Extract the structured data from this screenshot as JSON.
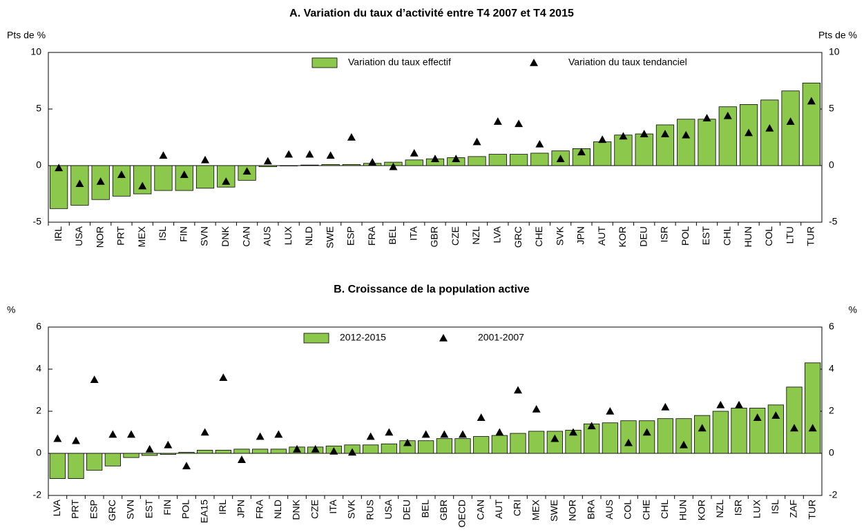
{
  "chart_data": [
    {
      "type": "bar",
      "title": "A. Variation du taux d’activité entre T4 2007 et T4 2015",
      "y_label_left": "Pts de %",
      "y_label_right": "Pts de %",
      "categories": [
        "IRL",
        "USA",
        "NOR",
        "PRT",
        "MEX",
        "ISL",
        "FIN",
        "SVN",
        "DNK",
        "CAN",
        "AUS",
        "LUX",
        "NLD",
        "SWE",
        "ESP",
        "FRA",
        "BEL",
        "ITA",
        "GBR",
        "CZE",
        "NZL",
        "LVA",
        "GRC",
        "CHE",
        "SVK",
        "JPN",
        "AUT",
        "KOR",
        "DEU",
        "ISR",
        "POL",
        "EST",
        "CHL",
        "HUN",
        "COL",
        "LTU",
        "TUR"
      ],
      "series": [
        {
          "name": "Variation du taux effectif",
          "color": "#8cc84b",
          "marker": "bar",
          "values": [
            -3.8,
            -3.5,
            -3.0,
            -2.7,
            -2.5,
            -2.2,
            -2.2,
            -2.0,
            -1.9,
            -1.3,
            -0.1,
            0.0,
            0.05,
            0.1,
            0.1,
            0.2,
            0.3,
            0.5,
            0.6,
            0.7,
            0.8,
            1.0,
            1.0,
            1.1,
            1.3,
            1.5,
            2.1,
            2.7,
            2.8,
            3.6,
            4.1,
            4.1,
            5.2,
            5.4,
            5.8,
            6.6,
            7.3
          ]
        },
        {
          "name": "Variation du taux tendanciel",
          "color": "#000000",
          "marker": "triangle",
          "values": [
            -0.2,
            -1.6,
            -1.4,
            -0.8,
            -1.8,
            0.9,
            -0.8,
            0.5,
            -1.4,
            -0.5,
            0.4,
            1.0,
            1.0,
            0.9,
            2.5,
            0.3,
            -0.1,
            1.1,
            0.6,
            0.6,
            2.1,
            3.9,
            3.7,
            1.9,
            0.6,
            1.2,
            2.3,
            2.6,
            2.8,
            2.8,
            2.7,
            4.2,
            4.4,
            2.9,
            3.3,
            3.9,
            5.7
          ]
        }
      ],
      "ylim": [
        -5,
        10
      ],
      "yticks": [
        -5,
        0,
        5,
        10
      ],
      "grid": false
    },
    {
      "type": "bar",
      "title": "B. Croissance de la population active",
      "y_label_left": "%",
      "y_label_right": "%",
      "categories": [
        "LVA",
        "PRT",
        "ESP",
        "GRC",
        "SVN",
        "EST",
        "FIN",
        "POL",
        "EA15",
        "IRL",
        "JPN",
        "FRA",
        "NLD",
        "DNK",
        "CZE",
        "ITA",
        "SVK",
        "RUS",
        "USA",
        "DEU",
        "BEL",
        "GBR",
        "OECD",
        "CAN",
        "AUT",
        "CRI",
        "MEX",
        "SWE",
        "NOR",
        "BRA",
        "AUS",
        "COL",
        "CHE",
        "CHL",
        "HUN",
        "KOR",
        "NZL",
        "ISR",
        "LUX",
        "ISL",
        "ZAF",
        "TUR"
      ],
      "series": [
        {
          "name": "2012-2015",
          "color": "#8cc84b",
          "marker": "bar",
          "values": [
            -1.2,
            -1.2,
            -0.8,
            -0.6,
            -0.2,
            -0.1,
            -0.05,
            0.05,
            0.15,
            0.15,
            0.2,
            0.2,
            0.2,
            0.3,
            0.3,
            0.35,
            0.4,
            0.4,
            0.45,
            0.6,
            0.6,
            0.7,
            0.7,
            0.8,
            0.85,
            0.95,
            1.05,
            1.05,
            1.1,
            1.4,
            1.45,
            1.55,
            1.55,
            1.65,
            1.65,
            1.8,
            2.0,
            2.15,
            2.15,
            2.3,
            3.15,
            4.3
          ]
        },
        {
          "name": "2001-2007",
          "color": "#000000",
          "marker": "triangle",
          "values": [
            0.7,
            0.6,
            3.5,
            0.9,
            0.9,
            0.2,
            0.4,
            -0.6,
            1.0,
            3.6,
            -0.3,
            0.8,
            0.9,
            0.2,
            0.2,
            0.1,
            0.05,
            0.8,
            1.0,
            0.5,
            0.9,
            0.9,
            0.9,
            1.7,
            1.0,
            3.0,
            2.1,
            0.7,
            1.0,
            1.3,
            2.0,
            0.5,
            1.0,
            2.2,
            0.4,
            1.2,
            2.3,
            2.3,
            1.7,
            1.8,
            1.2,
            1.2
          ]
        }
      ],
      "ylim": [
        -2,
        6
      ],
      "yticks": [
        -2,
        0,
        2,
        4,
        6
      ],
      "grid": false
    }
  ]
}
